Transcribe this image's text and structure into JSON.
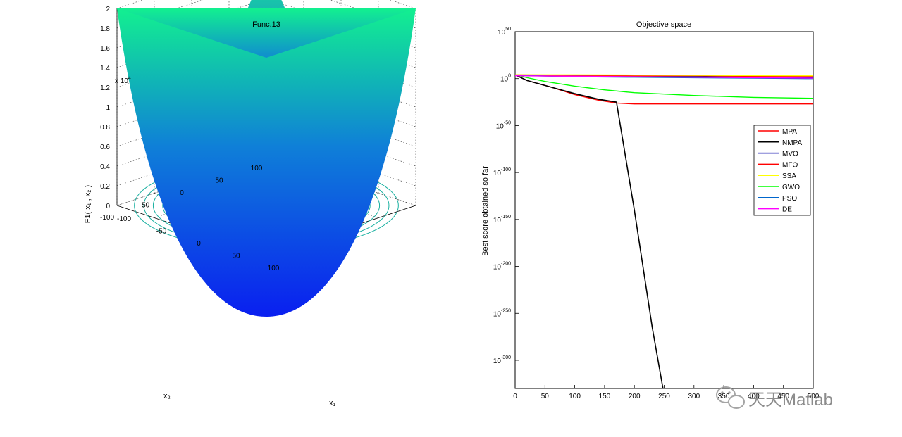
{
  "chart_data": [
    {
      "type": "surface",
      "title": "Func.13",
      "zlabel": "F1( x₁ , x₂ )",
      "xlabel": "x₁",
      "ylabel": "x₂",
      "z_exponent_label": "x 10",
      "z_exponent": "4",
      "zticks": [
        "0",
        "0.2",
        "0.4",
        "0.6",
        "0.8",
        "1",
        "1.2",
        "1.4",
        "1.6",
        "1.8",
        "2"
      ],
      "x1ticks": [
        "-100",
        "-50",
        "0",
        "50",
        "100"
      ],
      "x2ticks": [
        "100",
        "50",
        "0",
        "-50",
        "-100"
      ],
      "x1range": [
        -100,
        100
      ],
      "x2range": [
        -100,
        100
      ],
      "zrange": [
        0,
        20000
      ],
      "colormap": [
        "#0000ff",
        "#00ff80"
      ],
      "contours_on_floor": true,
      "grid": true
    },
    {
      "type": "line",
      "title": "Objective space",
      "xlabel": "",
      "ylabel": "Best score obtained so far",
      "yscale": "log",
      "xlim": [
        0,
        500
      ],
      "ylim_log10": [
        -330,
        50
      ],
      "xticks": [
        "0",
        "50",
        "100",
        "150",
        "200",
        "250",
        "300",
        "350",
        "400",
        "450",
        "500"
      ],
      "yticks": [
        {
          "base": "10",
          "exp": "50",
          "value": 50
        },
        {
          "base": "10",
          "exp": "0",
          "value": 0
        },
        {
          "base": "10",
          "exp": "-50",
          "value": -50
        },
        {
          "base": "10",
          "exp": "-100",
          "value": -100
        },
        {
          "base": "10",
          "exp": "-150",
          "value": -150
        },
        {
          "base": "10",
          "exp": "-200",
          "value": -200
        },
        {
          "base": "10",
          "exp": "-250",
          "value": -250
        },
        {
          "base": "10",
          "exp": "-300",
          "value": -300
        }
      ],
      "legend_position": "right",
      "series": [
        {
          "name": "MPA",
          "color": "#ff0000",
          "x": [
            0,
            20,
            60,
            100,
            140,
            170,
            200,
            300,
            400,
            500
          ],
          "log10y": [
            4,
            -2,
            -9,
            -17,
            -23,
            -26,
            -27,
            -27,
            -27,
            -27
          ]
        },
        {
          "name": "NMPA",
          "color": "#000000",
          "x": [
            0,
            20,
            60,
            100,
            140,
            170,
            200,
            230,
            248
          ],
          "log10y": [
            4,
            -2,
            -9,
            -16,
            -22,
            -25,
            -140,
            -265,
            -330
          ]
        },
        {
          "name": "MVO",
          "color": "#0000aa",
          "x": [
            0,
            100,
            200,
            300,
            400,
            500
          ],
          "log10y": [
            4,
            3,
            2.5,
            2,
            1.5,
            1
          ]
        },
        {
          "name": "MFO",
          "color": "#ff0000",
          "x": [
            0,
            100,
            200,
            300,
            400,
            500
          ],
          "log10y": [
            4,
            3.5,
            3,
            3,
            2.5,
            2.5
          ]
        },
        {
          "name": "SSA",
          "color": "#ffff00",
          "x": [
            0,
            100,
            200,
            300,
            400,
            500
          ],
          "log10y": [
            4,
            4,
            3.8,
            3.5,
            3.2,
            3
          ]
        },
        {
          "name": "GWO",
          "color": "#00ff00",
          "x": [
            0,
            20,
            50,
            100,
            150,
            200,
            300,
            400,
            500
          ],
          "log10y": [
            4,
            1,
            -3,
            -8,
            -12,
            -15,
            -18,
            -20,
            -21
          ]
        },
        {
          "name": "PSO",
          "color": "#0066cc",
          "x": [
            0,
            100,
            200,
            300,
            400,
            500
          ],
          "log10y": [
            3.5,
            2,
            1.5,
            1,
            0.5,
            0
          ]
        },
        {
          "name": "DE",
          "color": "#ff00ff",
          "x": [
            0,
            100,
            200,
            300,
            400,
            500
          ],
          "log10y": [
            3,
            2.5,
            2,
            1.5,
            1,
            0.5
          ]
        }
      ]
    }
  ],
  "watermark": "天天Matlab"
}
